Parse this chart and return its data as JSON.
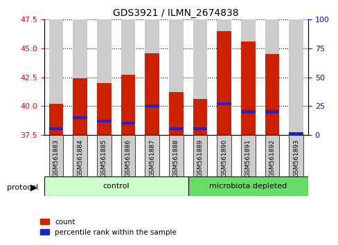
{
  "title": "GDS3921 / ILMN_2674838",
  "samples": [
    "GSM561883",
    "GSM561884",
    "GSM561885",
    "GSM561886",
    "GSM561887",
    "GSM561888",
    "GSM561889",
    "GSM561890",
    "GSM561891",
    "GSM561892",
    "GSM561893"
  ],
  "count_values": [
    40.2,
    42.4,
    42.0,
    42.7,
    44.6,
    41.2,
    40.6,
    46.5,
    45.6,
    44.5,
    37.7
  ],
  "percentile_values": [
    5,
    15,
    12,
    10,
    25,
    5,
    5,
    27,
    20,
    20,
    1
  ],
  "ymin": 37.5,
  "ymax": 47.5,
  "yticks": [
    37.5,
    40.0,
    42.5,
    45.0,
    47.5
  ],
  "right_yticks": [
    0,
    25,
    50,
    75,
    100
  ],
  "control_samples": 6,
  "bar_color_red": "#CC2200",
  "bar_color_blue": "#2222CC",
  "control_color": "#CCFFCC",
  "microbiota_color": "#66DD66",
  "bar_bg_color": "#CCCCCC",
  "bar_width": 0.6,
  "legend_count": "count",
  "legend_pct": "percentile rank within the sample"
}
